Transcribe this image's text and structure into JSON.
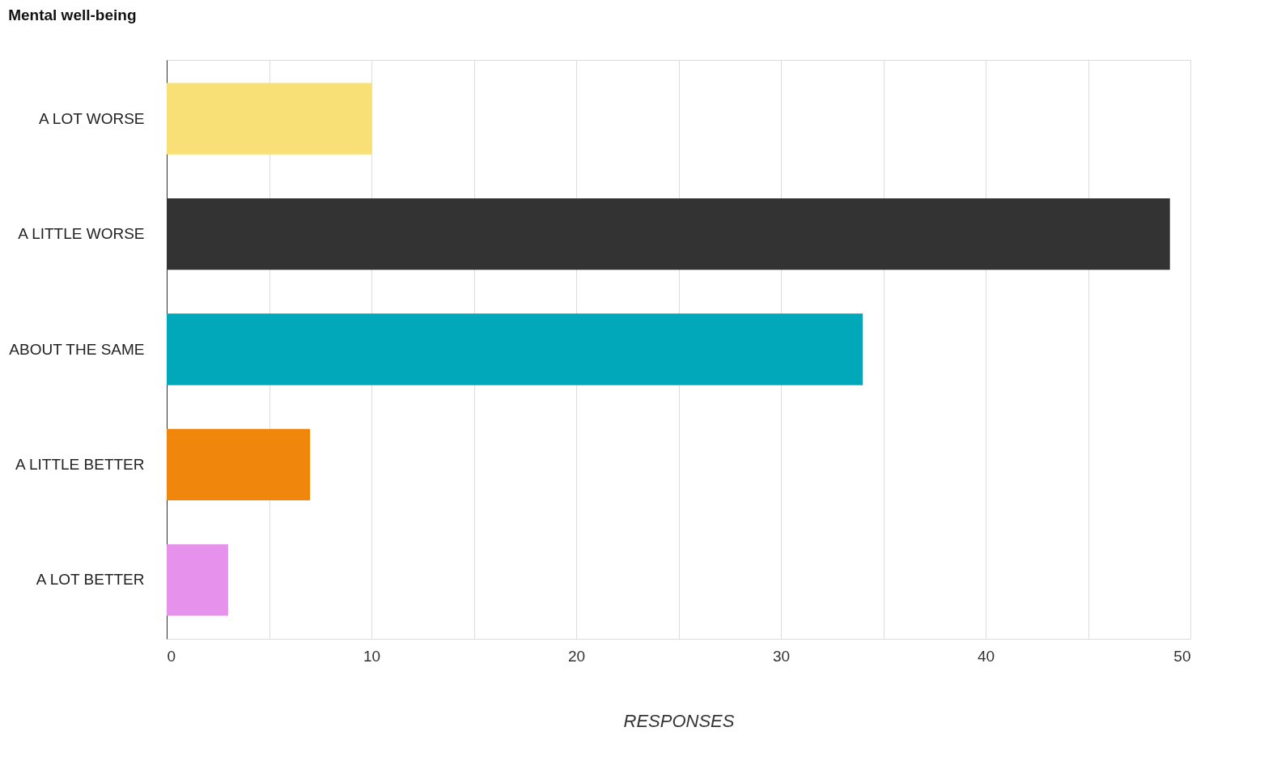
{
  "chart_data": {
    "type": "bar",
    "orientation": "horizontal",
    "title": "Mental well-being",
    "xlabel": "RESPONSES",
    "categories": [
      "A LOT WORSE",
      "A LITTLE WORSE",
      "ABOUT THE SAME",
      "A LITTLE BETTER",
      "A LOT BETTER"
    ],
    "values": [
      10,
      49,
      34,
      7,
      3
    ],
    "colors": [
      "#f9e076",
      "#333333",
      "#00a8ba",
      "#f0870c",
      "#e692ec"
    ],
    "xlim": [
      0,
      50
    ],
    "xticks": [
      0,
      {
        "value": 5,
        "label": null
      },
      10,
      {
        "value": 15,
        "label": null
      },
      20,
      {
        "value": 25,
        "label": null
      },
      30,
      {
        "value": 35,
        "label": null
      },
      40,
      {
        "value": 45,
        "label": null
      },
      50
    ],
    "grid": "x",
    "legend": false
  }
}
